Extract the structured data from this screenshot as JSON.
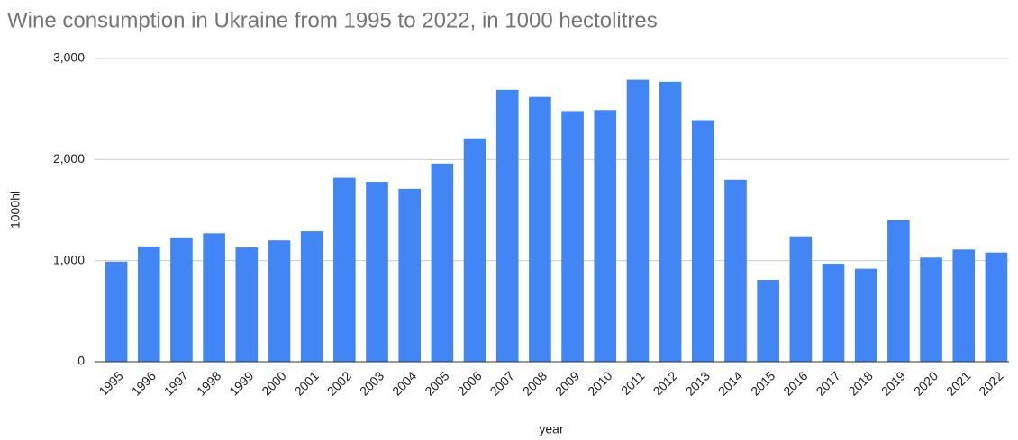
{
  "chart_data": {
    "type": "bar",
    "title": "Wine consumption in Ukraine from 1995 to 2022, in 1000 hectolitres",
    "x_label": "year",
    "y_label": "1000hl",
    "categories": [
      "1995",
      "1996",
      "1997",
      "1998",
      "1999",
      "2000",
      "2001",
      "2002",
      "2003",
      "2004",
      "2005",
      "2006",
      "2007",
      "2008",
      "2009",
      "2010",
      "2011",
      "2012",
      "2013",
      "2014",
      "2015",
      "2016",
      "2017",
      "2018",
      "2019",
      "2020",
      "2021",
      "2022"
    ],
    "values": [
      990,
      1140,
      1230,
      1270,
      1130,
      1200,
      1290,
      1820,
      1780,
      1710,
      1960,
      2210,
      2690,
      2620,
      2480,
      2490,
      2790,
      2770,
      2390,
      1800,
      810,
      1240,
      970,
      920,
      1400,
      1030,
      1110,
      1080
    ],
    "color": "#4285f4",
    "ylim": [
      0,
      3000
    ],
    "yticks": [
      0,
      {
        "value": 1000,
        "label": "1,000"
      },
      {
        "value": 2000,
        "label": "2,000"
      },
      {
        "value": 3000,
        "label": "3,000"
      }
    ],
    "grid": true
  }
}
